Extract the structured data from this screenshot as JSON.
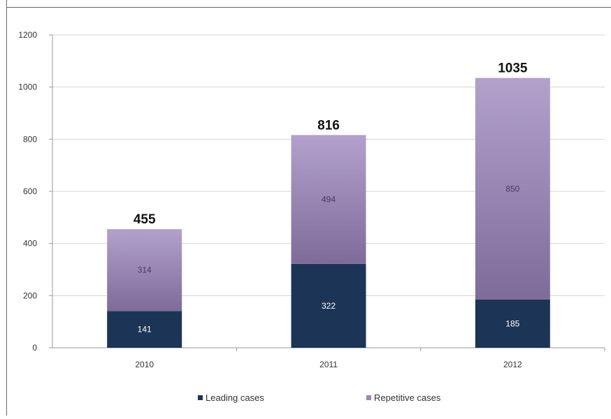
{
  "chart_data": {
    "type": "bar",
    "stacked": true,
    "categories": [
      "2010",
      "2011",
      "2012"
    ],
    "series": [
      {
        "name": "Leading cases",
        "values": [
          141,
          322,
          185
        ],
        "color": "#1c3557"
      },
      {
        "name": "Repetitive cases",
        "values": [
          314,
          494,
          850
        ],
        "color": "#9b87b5"
      }
    ],
    "totals": [
      455,
      816,
      1035
    ],
    "segment_labels": [
      [
        "141",
        "322",
        "185"
      ],
      [
        "314",
        "494",
        "850"
      ]
    ],
    "ylim": [
      0,
      1200
    ],
    "yticks": [
      "0",
      "200",
      "400",
      "600",
      "800",
      "1000",
      "1200"
    ],
    "grid": true,
    "legend": "bottom"
  }
}
